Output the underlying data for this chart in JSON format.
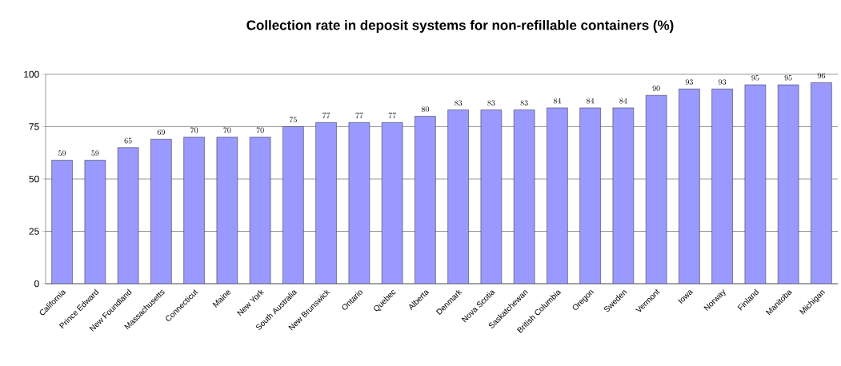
{
  "chart_data": {
    "type": "bar",
    "title": "Collection rate in deposit systems for non-refillable containers (%)",
    "categories": [
      "California",
      "Prince Edward",
      "New Foundland",
      "Massachusetts",
      "Connecticut",
      "Maine",
      "New York",
      "South Australia",
      "New Brunswick",
      "Ontario",
      "Quebec",
      "Alberta",
      "Denmark",
      "Nova Scotia",
      "Saskatchewan",
      "British Columbia",
      "Oregon",
      "Sweden",
      "Vermont",
      "Iowa",
      "Norway",
      "Finland",
      "Manitoba",
      "Michigan"
    ],
    "values": [
      59,
      59,
      65,
      69,
      70,
      70,
      70,
      75,
      77,
      77,
      77,
      80,
      83,
      83,
      83,
      84,
      84,
      84,
      90,
      93,
      93,
      95,
      95,
      96
    ],
    "color": "#9999ff",
    "ylim": [
      0,
      100
    ],
    "yticks": [
      0,
      25,
      50,
      75,
      100
    ],
    "grid": "y",
    "data_labels": true
  }
}
